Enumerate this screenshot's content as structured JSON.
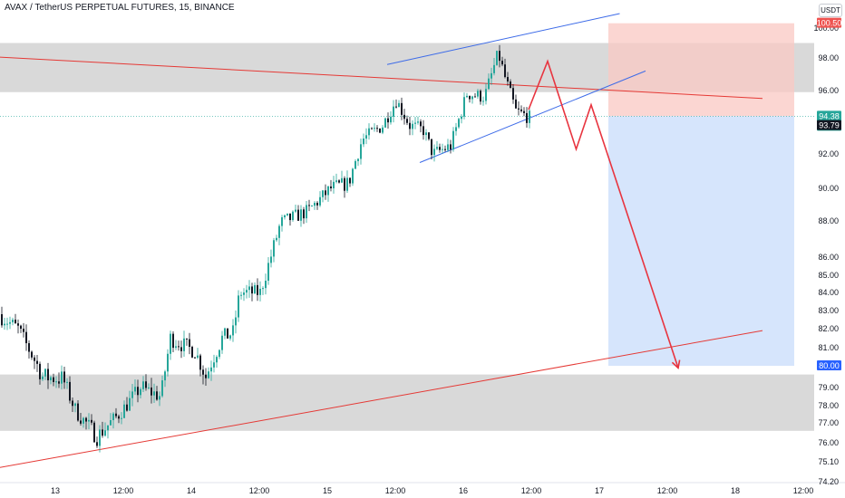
{
  "header": {
    "title": "AVAX / TetherUS PERPETUAL FUTURES, 15, BINANCE",
    "unit": "USDT"
  },
  "colors": {
    "up": "#26a69a",
    "down": "#131722",
    "zone": "#d9d9d9",
    "stop_zone": "#f9c8c3",
    "target_zone": "#cfe0fb",
    "trend_red": "#e53935",
    "channel_blue": "#3d6be8",
    "arrow": "#e8343f",
    "price_tag": "#26a69a",
    "dark_tag": "#131722",
    "stop_tag": "#ef5350",
    "target_tag": "#2962ff"
  },
  "chart_data": {
    "type": "candlestick",
    "symbol": "AVAX / TetherUS PERPETUAL FUTURES",
    "timeframe": "15",
    "exchange": "BINANCE",
    "x_ticks": [
      "13",
      "12:00",
      "14",
      "12:00",
      "15",
      "12:00",
      "16",
      "12:00",
      "17",
      "12:00",
      "18",
      "12:00"
    ],
    "y_ticks": [
      {
        "label": "100.00",
        "value": 100
      },
      {
        "label": "98.00",
        "value": 98
      },
      {
        "label": "96.00",
        "value": 96
      },
      {
        "label": "92.00",
        "value": 92
      },
      {
        "label": "90.00",
        "value": 90
      },
      {
        "label": "88.00",
        "value": 88
      },
      {
        "label": "86.00",
        "value": 86
      },
      {
        "label": "85.00",
        "value": 85
      },
      {
        "label": "84.00",
        "value": 84
      },
      {
        "label": "83.00",
        "value": 83
      },
      {
        "label": "82.00",
        "value": 82
      },
      {
        "label": "81.00",
        "value": 81
      },
      {
        "label": "79.00",
        "value": 79
      },
      {
        "label": "78.00",
        "value": 78
      },
      {
        "label": "77.00",
        "value": 77
      },
      {
        "label": "76.00",
        "value": 76
      },
      {
        "label": "75.10",
        "value": 75.1
      },
      {
        "label": "74.20",
        "value": 74.2
      }
    ],
    "price_path": [
      {
        "x": 0,
        "y": 82.8
      },
      {
        "x": 0.08,
        "y": 81.2
      },
      {
        "x": 0.25,
        "y": 82.1
      },
      {
        "x": 0.45,
        "y": 82.9
      },
      {
        "x": 0.62,
        "y": 82.0
      },
      {
        "x": 0.8,
        "y": 79.5
      },
      {
        "x": 0.95,
        "y": 79.4
      },
      {
        "x": 1.05,
        "y": 77.6
      },
      {
        "x": 1.2,
        "y": 76.3
      },
      {
        "x": 1.35,
        "y": 77.4
      },
      {
        "x": 1.52,
        "y": 79.0
      },
      {
        "x": 1.67,
        "y": 78.5
      },
      {
        "x": 1.74,
        "y": 81.5
      },
      {
        "x": 1.92,
        "y": 80.8
      },
      {
        "x": 2.0,
        "y": 79.5
      },
      {
        "x": 2.12,
        "y": 81.5
      },
      {
        "x": 2.2,
        "y": 81.8
      },
      {
        "x": 2.25,
        "y": 84.0
      },
      {
        "x": 2.4,
        "y": 84.0
      },
      {
        "x": 2.55,
        "y": 87.9
      },
      {
        "x": 2.75,
        "y": 88.6
      },
      {
        "x": 2.92,
        "y": 90.0
      },
      {
        "x": 3.05,
        "y": 90.3
      },
      {
        "x": 3.15,
        "y": 92.9
      },
      {
        "x": 3.3,
        "y": 93.8
      },
      {
        "x": 3.4,
        "y": 95.4
      },
      {
        "x": 3.5,
        "y": 93.8
      },
      {
        "x": 3.6,
        "y": 93.5
      },
      {
        "x": 3.67,
        "y": 92.0
      },
      {
        "x": 3.8,
        "y": 92.5
      },
      {
        "x": 3.92,
        "y": 95.8
      },
      {
        "x": 4.05,
        "y": 95.6
      },
      {
        "x": 4.15,
        "y": 98.3
      },
      {
        "x": 4.2,
        "y": 96.8
      },
      {
        "x": 4.28,
        "y": 94.7
      },
      {
        "x": 4.38,
        "y": 94.3
      }
    ],
    "last_price": {
      "label": "94.38",
      "value": 94.38,
      "countdown": "08:11"
    },
    "crosshair": {
      "label": "93.79",
      "value": 93.79
    },
    "short_position": {
      "entry": 94.38,
      "stop": 100.5,
      "stop_label": "100.50",
      "target": 80.0,
      "target_label": "80.00"
    },
    "resistance_zone": {
      "from": 95.9,
      "to": 99.0
    },
    "support_zone": {
      "from": 76.6,
      "to": 79.6
    },
    "descending_trendline": [
      {
        "x": 0,
        "y": 98.3
      },
      {
        "x": 6.1,
        "y": 95.5
      }
    ],
    "ascending_trendline": [
      {
        "x": 0,
        "y": 74.3
      },
      {
        "x": 6.1,
        "y": 81.9
      }
    ],
    "rising_channel_upper": [
      {
        "x": 3.34,
        "y": 97.6
      },
      {
        "x": 5.05,
        "y": 101.5
      }
    ],
    "rising_channel_lower": [
      {
        "x": 3.58,
        "y": 91.5
      },
      {
        "x": 5.24,
        "y": 97.2
      }
    ],
    "projection_path": [
      {
        "x": 4.38,
        "y": 94.8
      },
      {
        "x": 4.52,
        "y": 97.8
      },
      {
        "x": 4.73,
        "y": 92.3
      },
      {
        "x": 4.84,
        "y": 95.1
      },
      {
        "x": 5.48,
        "y": 79.9
      }
    ]
  }
}
